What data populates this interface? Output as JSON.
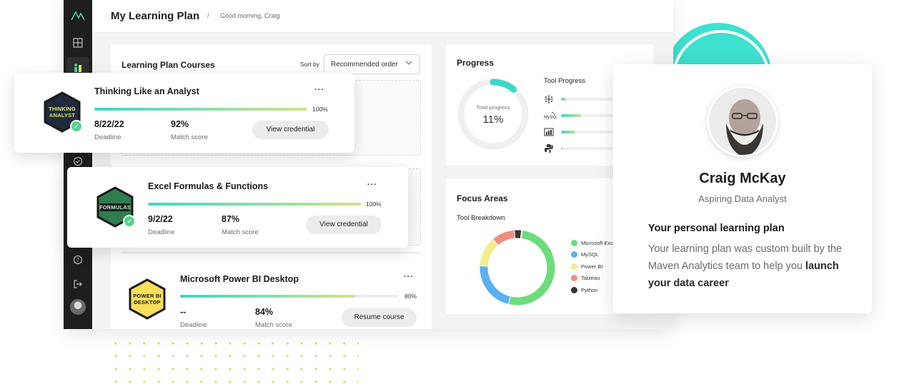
{
  "header": {
    "title": "My Learning Plan",
    "separator": "/",
    "greeting": "Good morning, Craig"
  },
  "sidebar": {
    "icons": [
      "logo-icon",
      "grid-icon",
      "learning-plan-icon",
      "check-circle-icon",
      "help-icon",
      "logout-icon",
      "avatar"
    ]
  },
  "courses_panel": {
    "title": "Learning Plan Courses",
    "sort_label": "Sort by",
    "sort_value": "Recommended order",
    "courses": [
      {
        "title": "Thinking Like an Analyst",
        "badge_text": "THINKING ANALYST",
        "progress_pct": "100%",
        "progress": 1.0,
        "deadline": "8/22/22",
        "deadline_label": "Deadline",
        "match": "92%",
        "match_label": "Match score",
        "button": "View credential",
        "more": "···",
        "completed": true
      },
      {
        "title": "Excel Formulas & Functions",
        "badge_text": "FORMULAS",
        "progress_pct": "100%",
        "progress": 1.0,
        "deadline": "9/2/22",
        "deadline_label": "Deadline",
        "match": "87%",
        "match_label": "Match score",
        "button": "View credential",
        "more": "···",
        "completed": true
      },
      {
        "title": "Microsoft Power BI Desktop",
        "badge_text": "POWER BI DESKTOP",
        "progress_pct": "80%",
        "progress": 0.8,
        "deadline": "--",
        "deadline_label": "Deadline",
        "match": "84%",
        "match_label": "Match score",
        "button": "Resume course",
        "more": "···",
        "completed": false
      }
    ]
  },
  "progress_panel": {
    "title": "Progress",
    "total_label": "Total progress",
    "total_value": "11%",
    "total_fraction": 0.11,
    "tool_progress_title": "Tool Progress",
    "tools": [
      {
        "name": "Tableau",
        "icon": "tableau-icon",
        "fraction": 0.06
      },
      {
        "name": "MySQL",
        "icon": "mysql-icon",
        "fraction": 0.25
      },
      {
        "name": "Power BI",
        "icon": "power-bi-icon",
        "fraction": 0.18
      },
      {
        "name": "Python",
        "icon": "python-icon",
        "fraction": 0.02
      }
    ]
  },
  "focus_panel": {
    "title": "Focus Areas",
    "breakdown_title": "Tool Breakdown",
    "legend": [
      {
        "label": "Microsoft Exc",
        "color": "#6ddc7a"
      },
      {
        "label": "MySQL",
        "color": "#5ab0f2"
      },
      {
        "label": "Power BI",
        "color": "#f2ec8f"
      },
      {
        "label": "Tableau",
        "color": "#f28b82"
      },
      {
        "label": "Python",
        "color": "#333333"
      }
    ]
  },
  "chart_data": {
    "type": "pie",
    "title": "Tool Breakdown",
    "categories": [
      "Microsoft Excel",
      "MySQL",
      "Power BI",
      "Tableau",
      "Python"
    ],
    "values": [
      52,
      22,
      13,
      10,
      3
    ]
  },
  "profile": {
    "name": "Craig McKay",
    "role": "Aspiring Data Analyst",
    "heading": "Your personal learning plan",
    "body_prefix": "Your learning plan was custom built by the Maven Analytics team to help you ",
    "body_bold": "launch your data career"
  }
}
